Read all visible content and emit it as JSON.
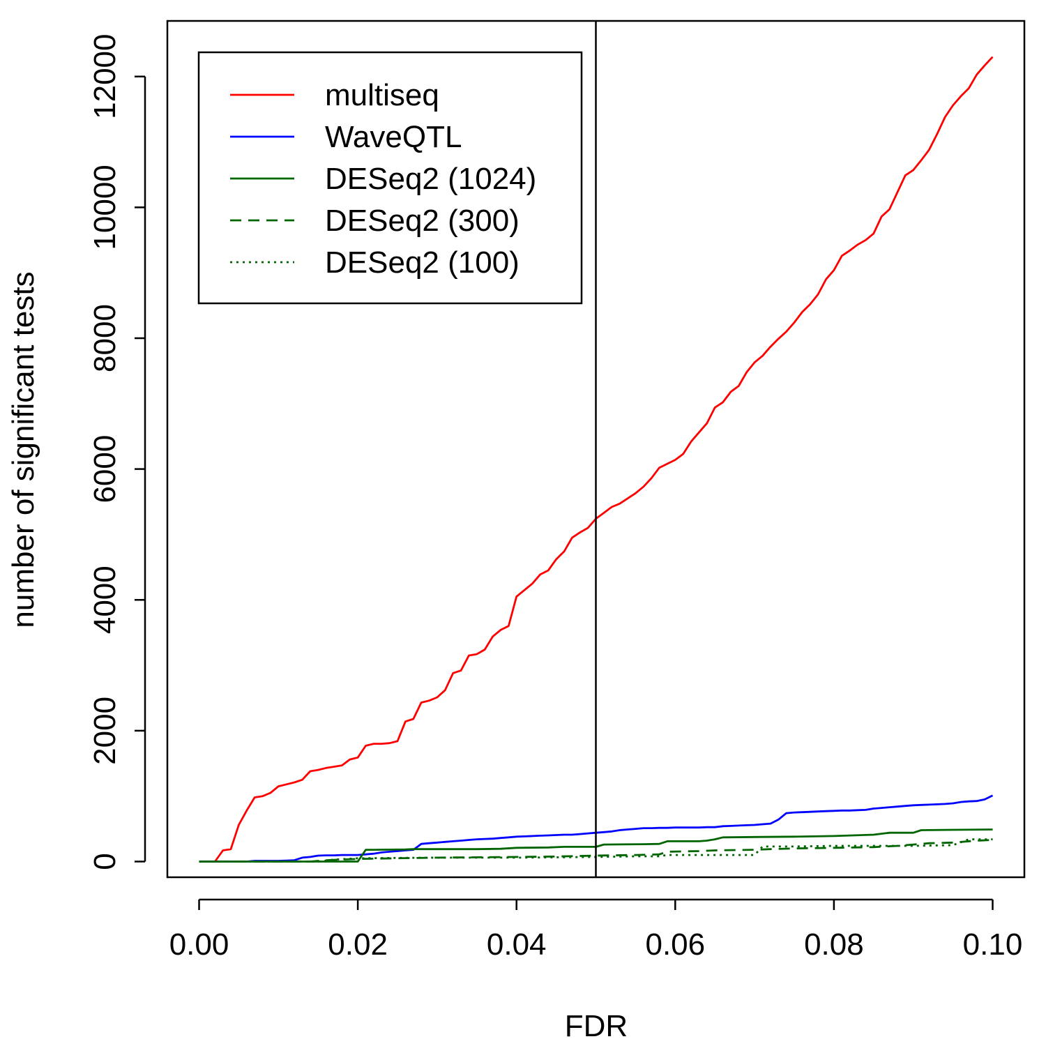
{
  "chart_data": {
    "type": "line",
    "title": "",
    "xlabel": "FDR",
    "ylabel": "number of significant tests",
    "xlim": [
      -0.004,
      0.104
    ],
    "ylim": [
      -240,
      12850
    ],
    "x_ticks": [
      "0.00",
      "0.02",
      "0.04",
      "0.06",
      "0.08",
      "0.10"
    ],
    "x_tick_values": [
      0,
      0.02,
      0.04,
      0.06,
      0.08,
      0.1
    ],
    "y_ticks": [
      "0",
      "2000",
      "4000",
      "6000",
      "8000",
      "10000",
      "12000"
    ],
    "y_tick_values": [
      0,
      2000,
      4000,
      6000,
      8000,
      10000,
      12000
    ],
    "reference_line": {
      "x": 0.05,
      "color": "#000000"
    },
    "grid": false,
    "legend_position": "top-left",
    "series": [
      {
        "name": "multiseq",
        "color": "#ff0000",
        "dash": "solid",
        "points": [
          [
            0,
            0
          ],
          [
            0.002,
            0
          ],
          [
            0.003,
            170
          ],
          [
            0.004,
            190
          ],
          [
            0.005,
            560
          ],
          [
            0.006,
            780
          ],
          [
            0.007,
            980
          ],
          [
            0.008,
            1000
          ],
          [
            0.009,
            1050
          ],
          [
            0.01,
            1150
          ],
          [
            0.011,
            1180
          ],
          [
            0.012,
            1210
          ],
          [
            0.013,
            1250
          ],
          [
            0.014,
            1380
          ],
          [
            0.015,
            1400
          ],
          [
            0.016,
            1430
          ],
          [
            0.017,
            1450
          ],
          [
            0.018,
            1470
          ],
          [
            0.019,
            1560
          ],
          [
            0.02,
            1590
          ],
          [
            0.021,
            1770
          ],
          [
            0.022,
            1800
          ],
          [
            0.023,
            1800
          ],
          [
            0.024,
            1810
          ],
          [
            0.025,
            1840
          ],
          [
            0.026,
            2140
          ],
          [
            0.027,
            2180
          ],
          [
            0.028,
            2430
          ],
          [
            0.029,
            2460
          ],
          [
            0.03,
            2510
          ],
          [
            0.031,
            2620
          ],
          [
            0.032,
            2880
          ],
          [
            0.033,
            2920
          ],
          [
            0.034,
            3150
          ],
          [
            0.035,
            3170
          ],
          [
            0.036,
            3240
          ],
          [
            0.037,
            3440
          ],
          [
            0.038,
            3540
          ],
          [
            0.039,
            3600
          ],
          [
            0.04,
            4050
          ],
          [
            0.041,
            4150
          ],
          [
            0.042,
            4250
          ],
          [
            0.043,
            4390
          ],
          [
            0.044,
            4450
          ],
          [
            0.045,
            4620
          ],
          [
            0.046,
            4740
          ],
          [
            0.047,
            4950
          ],
          [
            0.048,
            5030
          ],
          [
            0.049,
            5100
          ],
          [
            0.05,
            5240
          ],
          [
            0.051,
            5330
          ],
          [
            0.052,
            5420
          ],
          [
            0.053,
            5470
          ],
          [
            0.054,
            5550
          ],
          [
            0.055,
            5630
          ],
          [
            0.056,
            5730
          ],
          [
            0.057,
            5860
          ],
          [
            0.058,
            6020
          ],
          [
            0.059,
            6080
          ],
          [
            0.06,
            6140
          ],
          [
            0.061,
            6230
          ],
          [
            0.062,
            6420
          ],
          [
            0.063,
            6560
          ],
          [
            0.064,
            6700
          ],
          [
            0.065,
            6940
          ],
          [
            0.066,
            7020
          ],
          [
            0.067,
            7180
          ],
          [
            0.068,
            7270
          ],
          [
            0.069,
            7480
          ],
          [
            0.07,
            7630
          ],
          [
            0.071,
            7730
          ],
          [
            0.072,
            7870
          ],
          [
            0.073,
            7990
          ],
          [
            0.074,
            8100
          ],
          [
            0.075,
            8240
          ],
          [
            0.076,
            8400
          ],
          [
            0.077,
            8520
          ],
          [
            0.078,
            8670
          ],
          [
            0.079,
            8900
          ],
          [
            0.08,
            9040
          ],
          [
            0.081,
            9260
          ],
          [
            0.082,
            9340
          ],
          [
            0.083,
            9430
          ],
          [
            0.084,
            9500
          ],
          [
            0.085,
            9600
          ],
          [
            0.086,
            9860
          ],
          [
            0.087,
            9970
          ],
          [
            0.088,
            10230
          ],
          [
            0.089,
            10490
          ],
          [
            0.09,
            10570
          ],
          [
            0.091,
            10720
          ],
          [
            0.092,
            10880
          ],
          [
            0.093,
            11120
          ],
          [
            0.094,
            11380
          ],
          [
            0.095,
            11560
          ],
          [
            0.096,
            11700
          ],
          [
            0.097,
            11820
          ],
          [
            0.098,
            12030
          ],
          [
            0.099,
            12170
          ],
          [
            0.1,
            12300
          ]
        ]
      },
      {
        "name": "WaveQTL",
        "color": "#0000ff",
        "dash": "solid",
        "points": [
          [
            0,
            0
          ],
          [
            0.006,
            0
          ],
          [
            0.007,
            10
          ],
          [
            0.008,
            10
          ],
          [
            0.009,
            10
          ],
          [
            0.01,
            10
          ],
          [
            0.011,
            15
          ],
          [
            0.012,
            20
          ],
          [
            0.013,
            60
          ],
          [
            0.014,
            70
          ],
          [
            0.015,
            90
          ],
          [
            0.016,
            95
          ],
          [
            0.017,
            95
          ],
          [
            0.018,
            100
          ],
          [
            0.019,
            100
          ],
          [
            0.02,
            100
          ],
          [
            0.021,
            110
          ],
          [
            0.022,
            120
          ],
          [
            0.023,
            140
          ],
          [
            0.024,
            150
          ],
          [
            0.025,
            160
          ],
          [
            0.026,
            170
          ],
          [
            0.027,
            180
          ],
          [
            0.028,
            270
          ],
          [
            0.029,
            280
          ],
          [
            0.03,
            290
          ],
          [
            0.031,
            300
          ],
          [
            0.032,
            310
          ],
          [
            0.033,
            320
          ],
          [
            0.034,
            330
          ],
          [
            0.035,
            340
          ],
          [
            0.036,
            345
          ],
          [
            0.037,
            350
          ],
          [
            0.038,
            360
          ],
          [
            0.039,
            370
          ],
          [
            0.04,
            380
          ],
          [
            0.041,
            385
          ],
          [
            0.042,
            390
          ],
          [
            0.043,
            395
          ],
          [
            0.044,
            400
          ],
          [
            0.045,
            405
          ],
          [
            0.046,
            410
          ],
          [
            0.047,
            410
          ],
          [
            0.048,
            420
          ],
          [
            0.049,
            430
          ],
          [
            0.05,
            440
          ],
          [
            0.051,
            450
          ],
          [
            0.052,
            460
          ],
          [
            0.053,
            480
          ],
          [
            0.054,
            490
          ],
          [
            0.055,
            500
          ],
          [
            0.056,
            510
          ],
          [
            0.057,
            510
          ],
          [
            0.058,
            515
          ],
          [
            0.059,
            515
          ],
          [
            0.06,
            520
          ],
          [
            0.061,
            520
          ],
          [
            0.062,
            520
          ],
          [
            0.063,
            520
          ],
          [
            0.064,
            525
          ],
          [
            0.065,
            525
          ],
          [
            0.066,
            540
          ],
          [
            0.067,
            545
          ],
          [
            0.068,
            550
          ],
          [
            0.069,
            555
          ],
          [
            0.07,
            560
          ],
          [
            0.071,
            570
          ],
          [
            0.072,
            580
          ],
          [
            0.073,
            640
          ],
          [
            0.074,
            740
          ],
          [
            0.075,
            750
          ],
          [
            0.076,
            755
          ],
          [
            0.077,
            760
          ],
          [
            0.078,
            765
          ],
          [
            0.079,
            770
          ],
          [
            0.08,
            775
          ],
          [
            0.081,
            780
          ],
          [
            0.082,
            780
          ],
          [
            0.083,
            785
          ],
          [
            0.084,
            790
          ],
          [
            0.085,
            810
          ],
          [
            0.086,
            820
          ],
          [
            0.087,
            830
          ],
          [
            0.088,
            840
          ],
          [
            0.089,
            850
          ],
          [
            0.09,
            860
          ],
          [
            0.091,
            865
          ],
          [
            0.092,
            870
          ],
          [
            0.093,
            875
          ],
          [
            0.094,
            880
          ],
          [
            0.095,
            890
          ],
          [
            0.096,
            910
          ],
          [
            0.097,
            920
          ],
          [
            0.098,
            925
          ],
          [
            0.099,
            950
          ],
          [
            0.1,
            1010
          ]
        ]
      },
      {
        "name": "DESeq2 (1024)",
        "color": "#006400",
        "dash": "solid",
        "points": [
          [
            0,
            0
          ],
          [
            0.02,
            0
          ],
          [
            0.021,
            180
          ],
          [
            0.022,
            180
          ],
          [
            0.026,
            185
          ],
          [
            0.027,
            190
          ],
          [
            0.035,
            190
          ],
          [
            0.038,
            195
          ],
          [
            0.04,
            210
          ],
          [
            0.044,
            215
          ],
          [
            0.046,
            225
          ],
          [
            0.05,
            225
          ],
          [
            0.051,
            260
          ],
          [
            0.056,
            265
          ],
          [
            0.058,
            270
          ],
          [
            0.059,
            310
          ],
          [
            0.063,
            310
          ],
          [
            0.064,
            320
          ],
          [
            0.065,
            340
          ],
          [
            0.066,
            370
          ],
          [
            0.07,
            375
          ],
          [
            0.075,
            380
          ],
          [
            0.08,
            390
          ],
          [
            0.085,
            410
          ],
          [
            0.087,
            440
          ],
          [
            0.09,
            440
          ],
          [
            0.091,
            480
          ],
          [
            0.095,
            485
          ],
          [
            0.1,
            490
          ]
        ]
      },
      {
        "name": "DESeq2 (300)",
        "color": "#006400",
        "dash": "dashed",
        "points": [
          [
            0,
            0
          ],
          [
            0.014,
            0
          ],
          [
            0.016,
            20
          ],
          [
            0.02,
            40
          ],
          [
            0.025,
            50
          ],
          [
            0.03,
            60
          ],
          [
            0.035,
            65
          ],
          [
            0.04,
            70
          ],
          [
            0.044,
            75
          ],
          [
            0.046,
            80
          ],
          [
            0.05,
            90
          ],
          [
            0.055,
            100
          ],
          [
            0.058,
            110
          ],
          [
            0.059,
            150
          ],
          [
            0.063,
            160
          ],
          [
            0.065,
            170
          ],
          [
            0.07,
            180
          ],
          [
            0.072,
            190
          ],
          [
            0.075,
            200
          ],
          [
            0.08,
            210
          ],
          [
            0.085,
            220
          ],
          [
            0.088,
            240
          ],
          [
            0.09,
            260
          ],
          [
            0.092,
            280
          ],
          [
            0.095,
            290
          ],
          [
            0.098,
            320
          ],
          [
            0.1,
            330
          ]
        ]
      },
      {
        "name": "DESeq2 (100)",
        "color": "#006400",
        "dash": "dotted",
        "points": [
          [
            0,
            0
          ],
          [
            0.015,
            0
          ],
          [
            0.017,
            30
          ],
          [
            0.02,
            50
          ],
          [
            0.025,
            55
          ],
          [
            0.03,
            60
          ],
          [
            0.035,
            60
          ],
          [
            0.04,
            60
          ],
          [
            0.045,
            65
          ],
          [
            0.05,
            70
          ],
          [
            0.055,
            80
          ],
          [
            0.058,
            80
          ],
          [
            0.059,
            100
          ],
          [
            0.065,
            100
          ],
          [
            0.07,
            100
          ],
          [
            0.071,
            230
          ],
          [
            0.075,
            230
          ],
          [
            0.08,
            240
          ],
          [
            0.085,
            240
          ],
          [
            0.09,
            240
          ],
          [
            0.095,
            250
          ],
          [
            0.097,
            340
          ],
          [
            0.1,
            340
          ]
        ]
      }
    ]
  }
}
